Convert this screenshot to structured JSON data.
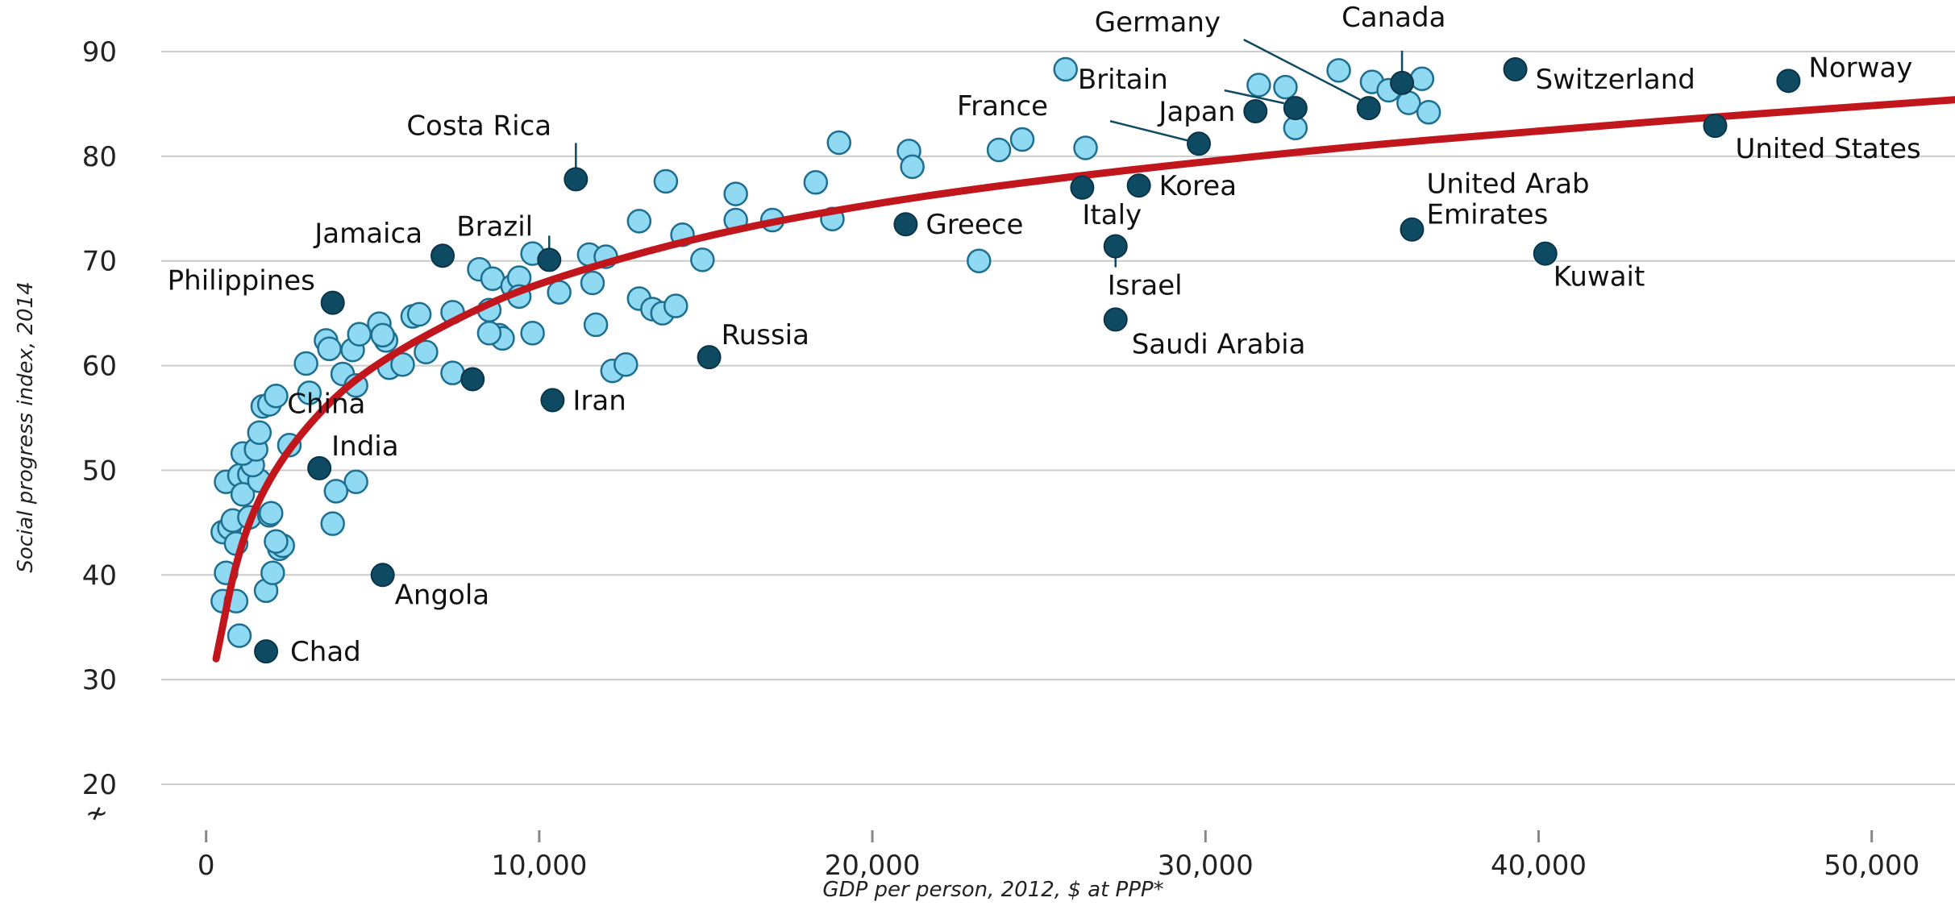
{
  "chart_data": {
    "type": "scatter",
    "xlabel": "GDP per person, 2012, $ at PPP*",
    "ylabel": "Social progress index, 2014",
    "xlim": [
      -500,
      52500
    ],
    "ylim": [
      16,
      93
    ],
    "xticks": [
      0,
      10000,
      20000,
      30000,
      40000,
      50000
    ],
    "xtick_labels": [
      "0",
      "10,000",
      "20,000",
      "30,000",
      "40,000",
      "50,000"
    ],
    "yticks": [
      20,
      30,
      40,
      50,
      60,
      70,
      80,
      90
    ],
    "ytick_labels": [
      "20",
      "30",
      "40",
      "50",
      "60",
      "70",
      "80",
      "90"
    ],
    "axis_break_symbol": "≁",
    "grid": true,
    "colors": {
      "highlight_fill": "#0f4a63",
      "other_fill": "#8fd9f2",
      "other_stroke": "#1e6f8f",
      "trend": "#c0161c"
    },
    "trend_curve": {
      "shape": "logarithmic",
      "points": [
        [
          300,
          32
        ],
        [
          1000,
          43
        ],
        [
          2000,
          50
        ],
        [
          3500,
          56
        ],
        [
          5000,
          60
        ],
        [
          7500,
          64.5
        ],
        [
          10000,
          68
        ],
        [
          15000,
          72.5
        ],
        [
          20000,
          75.5
        ],
        [
          25000,
          77.7
        ],
        [
          30000,
          79.5
        ],
        [
          35000,
          81.1
        ],
        [
          40000,
          82.4
        ],
        [
          45000,
          83.7
        ],
        [
          52500,
          85.4
        ]
      ]
    },
    "highlighted": [
      {
        "name": "Chad",
        "x": 1800,
        "y": 32.7
      },
      {
        "name": "Angola",
        "x": 5300,
        "y": 40
      },
      {
        "name": "India",
        "x": 3400,
        "y": 50.2
      },
      {
        "name": "China",
        "x": 8000,
        "y": 58.7
      },
      {
        "name": "Iran",
        "x": 10400,
        "y": 56.7
      },
      {
        "name": "Philippines",
        "x": 3800,
        "y": 66
      },
      {
        "name": "Jamaica",
        "x": 7100,
        "y": 70.5
      },
      {
        "name": "Brazil",
        "x": 10300,
        "y": 70.1
      },
      {
        "name": "Costa Rica",
        "x": 11100,
        "y": 77.8
      },
      {
        "name": "Russia",
        "x": 15100,
        "y": 60.8
      },
      {
        "name": "Greece",
        "x": 21000,
        "y": 73.5
      },
      {
        "name": "France",
        "x": 29800,
        "y": 81.2
      },
      {
        "name": "Italy",
        "x": 26300,
        "y": 77
      },
      {
        "name": "Korea",
        "x": 28000,
        "y": 77.2
      },
      {
        "name": "Israel",
        "x": 27300,
        "y": 71.4
      },
      {
        "name": "Saudi Arabia",
        "x": 27300,
        "y": 64.4
      },
      {
        "name": "Japan",
        "x": 31500,
        "y": 84.3
      },
      {
        "name": "Britain",
        "x": 32700,
        "y": 84.6
      },
      {
        "name": "Germany",
        "x": 34900,
        "y": 84.6
      },
      {
        "name": "Canada",
        "x": 35900,
        "y": 87
      },
      {
        "name": "Switzerland",
        "x": 39300,
        "y": 88.3
      },
      {
        "name": "Norway",
        "x": 47500,
        "y": 87.2
      },
      {
        "name": "United States",
        "x": 45300,
        "y": 82.9
      },
      {
        "name": "United Arab Emirates",
        "x": 36200,
        "y": 73
      },
      {
        "name": "Kuwait",
        "x": 40200,
        "y": 70.7
      }
    ],
    "others": [
      [
        500,
        37.5
      ],
      [
        900,
        37.5
      ],
      [
        1000,
        34.2
      ],
      [
        1800,
        38.5
      ],
      [
        2000,
        40.2
      ],
      [
        600,
        40.2
      ],
      [
        2200,
        42.5
      ],
      [
        2300,
        42.8
      ],
      [
        2100,
        43.2
      ],
      [
        500,
        44.1
      ],
      [
        700,
        44.5
      ],
      [
        900,
        43
      ],
      [
        800,
        45.2
      ],
      [
        1300,
        45.5
      ],
      [
        1900,
        45.7
      ],
      [
        1950,
        45.9
      ],
      [
        3800,
        44.9
      ],
      [
        4500,
        48.9
      ],
      [
        3900,
        48
      ],
      [
        600,
        48.9
      ],
      [
        1000,
        49.5
      ],
      [
        1300,
        49.6
      ],
      [
        1100,
        47.7
      ],
      [
        1600,
        49
      ],
      [
        1400,
        50.5
      ],
      [
        1100,
        51.6
      ],
      [
        1500,
        52
      ],
      [
        1600,
        53.6
      ],
      [
        2500,
        52.4
      ],
      [
        1700,
        56.1
      ],
      [
        1900,
        56.3
      ],
      [
        2100,
        57.1
      ],
      [
        3100,
        57.4
      ],
      [
        4100,
        59.2
      ],
      [
        4500,
        58.1
      ],
      [
        3000,
        60.2
      ],
      [
        5500,
        59.8
      ],
      [
        5900,
        60.1
      ],
      [
        7400,
        59.3
      ],
      [
        6600,
        61.3
      ],
      [
        3600,
        62.4
      ],
      [
        3700,
        61.6
      ],
      [
        4400,
        61.5
      ],
      [
        4600,
        63
      ],
      [
        5200,
        64
      ],
      [
        5400,
        62.4
      ],
      [
        5300,
        62.9
      ],
      [
        6200,
        64.7
      ],
      [
        6400,
        64.9
      ],
      [
        7400,
        65.1
      ],
      [
        8500,
        65.3
      ],
      [
        8800,
        62.9
      ],
      [
        8900,
        62.6
      ],
      [
        8500,
        63.1
      ],
      [
        9800,
        63.1
      ],
      [
        8200,
        69.2
      ],
      [
        8600,
        68.3
      ],
      [
        9200,
        67.6
      ],
      [
        9400,
        68.4
      ],
      [
        9800,
        70.7
      ],
      [
        9400,
        66.6
      ],
      [
        10600,
        67
      ],
      [
        11500,
        70.6
      ],
      [
        12000,
        70.4
      ],
      [
        11600,
        67.9
      ],
      [
        11700,
        63.9
      ],
      [
        12200,
        59.5
      ],
      [
        12600,
        60.1
      ],
      [
        13000,
        66.4
      ],
      [
        13400,
        65.4
      ],
      [
        13700,
        65
      ],
      [
        14100,
        65.7
      ],
      [
        13000,
        73.8
      ],
      [
        14300,
        72.5
      ],
      [
        14900,
        70.1
      ],
      [
        13800,
        77.6
      ],
      [
        15900,
        76.4
      ],
      [
        15900,
        73.9
      ],
      [
        17000,
        73.9
      ],
      [
        18800,
        74
      ],
      [
        18300,
        77.5
      ],
      [
        19000,
        81.3
      ],
      [
        21100,
        80.5
      ],
      [
        21200,
        79
      ],
      [
        23200,
        70
      ],
      [
        23800,
        80.6
      ],
      [
        24500,
        81.6
      ],
      [
        25800,
        88.3
      ],
      [
        26400,
        80.8
      ],
      [
        31600,
        86.8
      ],
      [
        32400,
        86.6
      ],
      [
        32700,
        82.7
      ],
      [
        34000,
        88.2
      ],
      [
        35000,
        87.1
      ],
      [
        35500,
        86.3
      ],
      [
        36100,
        85.1
      ],
      [
        36500,
        87.4
      ],
      [
        36700,
        84.2
      ]
    ]
  }
}
